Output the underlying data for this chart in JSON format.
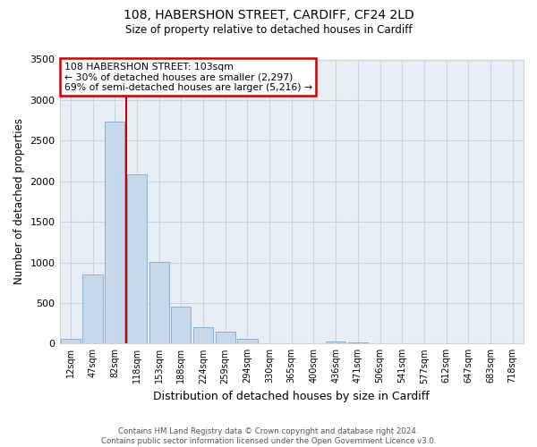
{
  "title1": "108, HABERSHON STREET, CARDIFF, CF24 2LD",
  "title2": "Size of property relative to detached houses in Cardiff",
  "xlabel": "Distribution of detached houses by size in Cardiff",
  "ylabel": "Number of detached properties",
  "bar_color": "#c8d8ec",
  "bar_edge_color": "#8ab0d0",
  "categories": [
    "12sqm",
    "47sqm",
    "82sqm",
    "118sqm",
    "153sqm",
    "188sqm",
    "224sqm",
    "259sqm",
    "294sqm",
    "330sqm",
    "365sqm",
    "400sqm",
    "436sqm",
    "471sqm",
    "506sqm",
    "541sqm",
    "577sqm",
    "612sqm",
    "647sqm",
    "683sqm",
    "718sqm"
  ],
  "values": [
    55,
    850,
    2730,
    2080,
    1010,
    450,
    205,
    145,
    55,
    5,
    5,
    5,
    25,
    15,
    5,
    0,
    0,
    0,
    0,
    0,
    0
  ],
  "ylim": [
    0,
    3500
  ],
  "yticks": [
    0,
    500,
    1000,
    1500,
    2000,
    2500,
    3000,
    3500
  ],
  "vline_x_index": 2.5,
  "marker_label": "108 HABERSHON STREET: 103sqm",
  "annotation_line1": "← 30% of detached houses are smaller (2,297)",
  "annotation_line2": "69% of semi-detached houses are larger (5,216) →",
  "annotation_box_color": "#ffffff",
  "annotation_box_edge": "#cc0000",
  "vline_color": "#cc0000",
  "footer1": "Contains HM Land Registry data © Crown copyright and database right 2024.",
  "footer2": "Contains public sector information licensed under the Open Government Licence v3.0.",
  "bg_color": "#ffffff",
  "plot_bg_color": "#e8eef6",
  "grid_color": "#c8d4e0"
}
